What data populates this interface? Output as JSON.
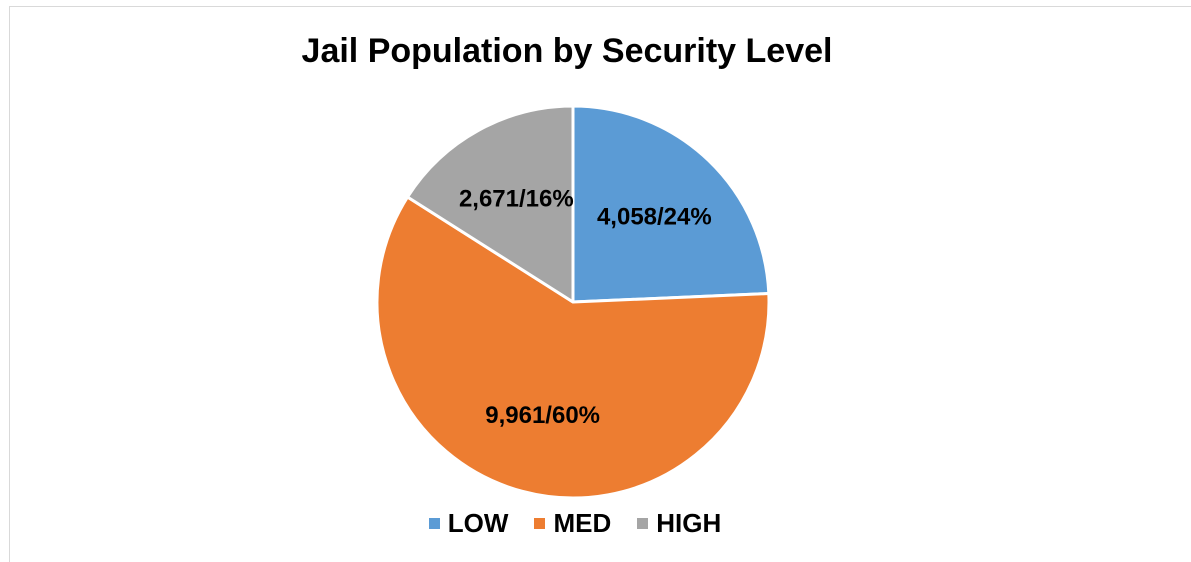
{
  "chart_data": {
    "type": "pie",
    "title": "Jail Population by Security Level",
    "categories": [
      "LOW",
      "MED",
      "HIGH"
    ],
    "values": [
      4058,
      9961,
      2671
    ],
    "percentages": [
      24,
      60,
      16
    ],
    "data_labels": [
      "4,058/24%",
      "9,961/60%",
      "2,671/16%"
    ],
    "colors": [
      "#5b9bd5",
      "#ed7d31",
      "#a5a5a5"
    ],
    "legend": {
      "position": "bottom",
      "entries": [
        "LOW",
        "MED",
        "HIGH"
      ]
    },
    "start_angle": "12 o'clock",
    "direction": "clockwise"
  }
}
